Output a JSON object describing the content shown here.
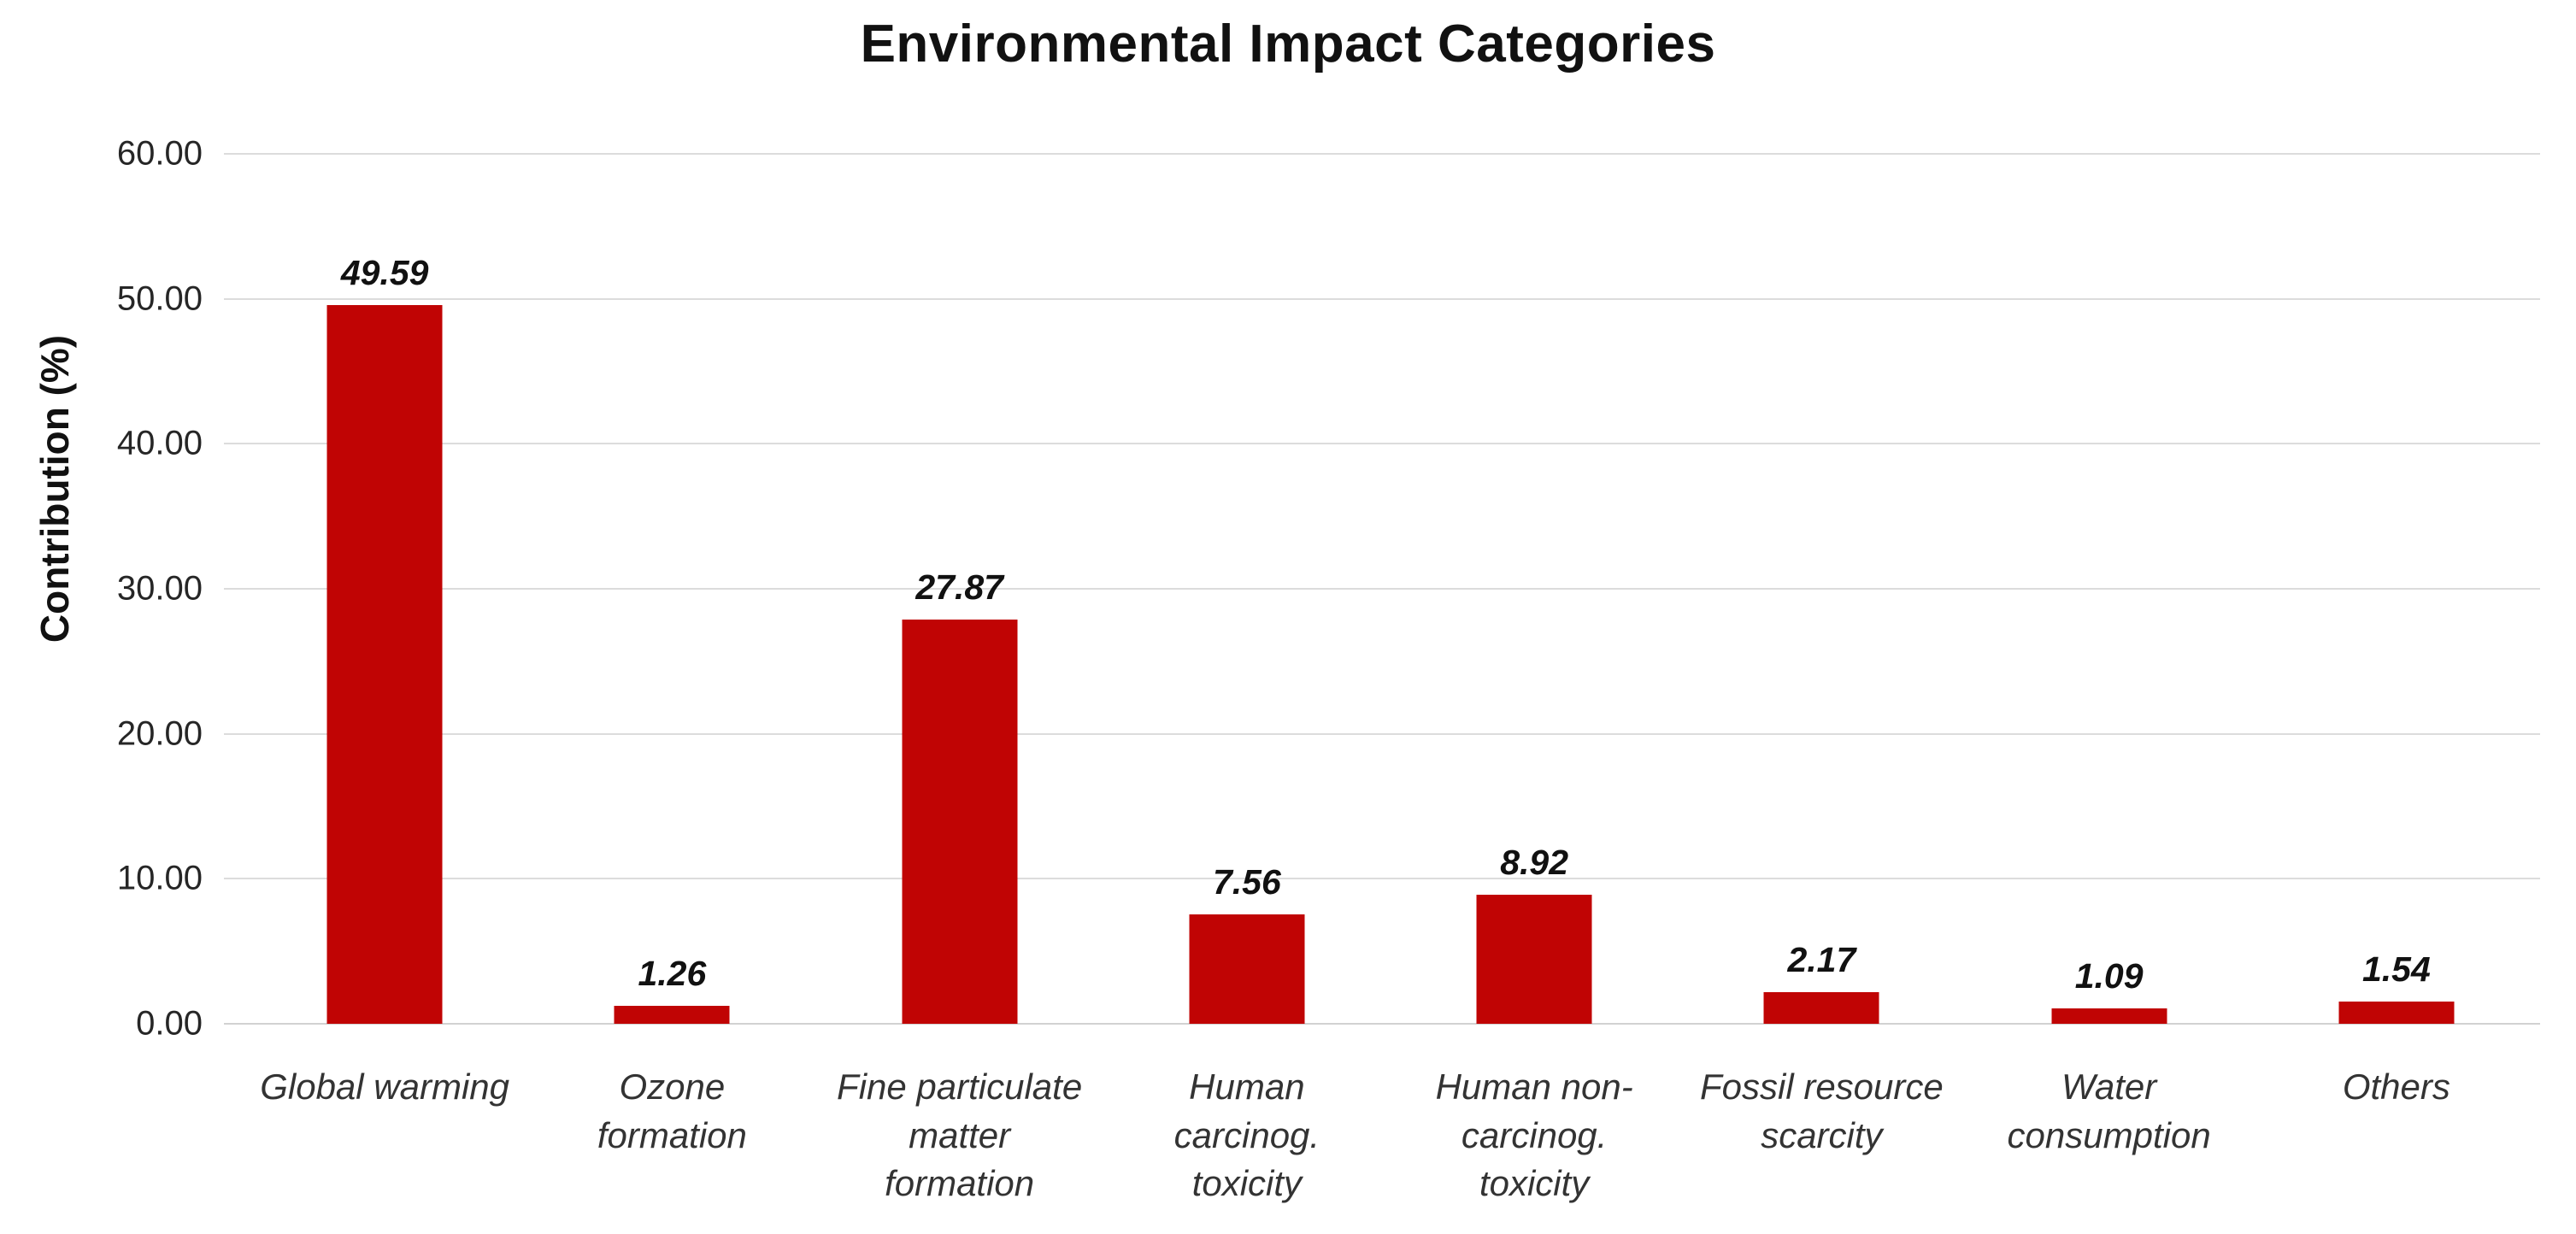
{
  "chart_data": {
    "type": "bar",
    "title": "Environmental Impact Categories",
    "ylabel": "Contribution (%)",
    "xlabel": "",
    "categories": [
      "Global warming",
      "Ozone\nformation",
      "Fine particulate\nmatter\nformation",
      "Human\ncarcinog.\ntoxicity",
      "Human non-\ncarcinog.\ntoxicity",
      "Fossil resource\nscarcity",
      "Water\nconsumption",
      "Others"
    ],
    "values": [
      49.59,
      1.26,
      27.87,
      7.56,
      8.92,
      2.17,
      1.09,
      1.54
    ],
    "value_labels": [
      "49.59",
      "1.26",
      "27.87",
      "7.56",
      "8.92",
      "2.17",
      "1.09",
      "1.54"
    ],
    "ylim": [
      0,
      60
    ],
    "yticks": [
      60,
      50,
      40,
      30,
      20,
      10,
      0
    ],
    "ytick_labels": [
      "60.00",
      "50.00",
      "40.00",
      "30.00",
      "20.00",
      "10.00",
      "0.00"
    ],
    "grid": true,
    "legend": "none",
    "colors": {
      "bar": "#C00404",
      "gridline": "#DCDCDC",
      "axis_line": "#D2D2D2",
      "title_text": "#111111",
      "tick_text": "#262626",
      "category_text": "#333333",
      "background": "#FFFFFF"
    }
  }
}
